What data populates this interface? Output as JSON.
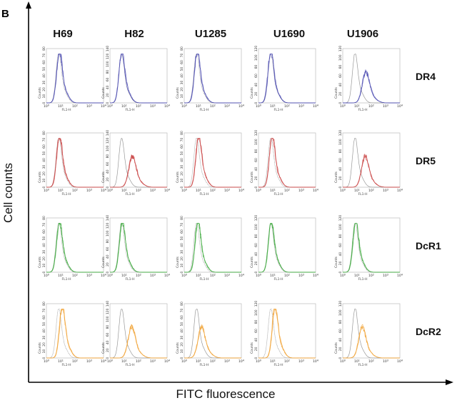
{
  "figure": {
    "panel_letter": "B",
    "y_title": "Cell counts",
    "x_title": "FITC fluorescence",
    "subplot_xlabel": "FL1-H",
    "subplot_ylabel": "Counts",
    "x_ticks": [
      "10^0",
      "10^1",
      "10^2",
      "10^3",
      "10^4"
    ]
  },
  "chart_data": {
    "type": "line",
    "description_scale": "log-x histogram grid",
    "columns": [
      "H69",
      "H82",
      "U1285",
      "U1690",
      "U1906"
    ],
    "rows": [
      {
        "label": "DR4",
        "color": "#4a4ab0",
        "ymax": [
          80,
          140,
          80,
          120,
          120
        ],
        "y_ticks": [
          [
            0,
            10,
            20,
            30,
            40,
            50,
            60,
            70,
            80
          ],
          [
            0,
            20,
            40,
            60,
            80,
            100,
            120,
            140
          ],
          [
            0,
            10,
            20,
            30,
            40,
            50,
            60,
            70,
            80
          ],
          [
            0,
            20,
            40,
            60,
            80,
            100,
            120
          ],
          [
            0,
            20,
            40,
            60,
            80,
            100,
            120
          ]
        ],
        "control_peak_log": [
          0.85,
          0.8,
          0.85,
          0.85,
          0.85
        ],
        "stain_peak_log": [
          0.9,
          0.82,
          0.9,
          0.85,
          1.6
        ]
      },
      {
        "label": "DR5",
        "color": "#c84040",
        "ymax": [
          80,
          140,
          80,
          120,
          120
        ],
        "y_ticks": [
          [
            0,
            10,
            20,
            30,
            40,
            50,
            60,
            70,
            80
          ],
          [
            0,
            20,
            40,
            60,
            80,
            100,
            120,
            140
          ],
          [
            0,
            10,
            20,
            30,
            40,
            50,
            60,
            70,
            80
          ],
          [
            0,
            20,
            40,
            60,
            80,
            100,
            120
          ],
          [
            0,
            20,
            40,
            60,
            80,
            100,
            120
          ]
        ],
        "control_peak_log": [
          0.85,
          0.8,
          0.85,
          0.85,
          0.85
        ],
        "stain_peak_log": [
          0.9,
          1.55,
          1.0,
          0.95,
          1.55
        ]
      },
      {
        "label": "DcR1",
        "color": "#3aa83a",
        "ymax": [
          80,
          140,
          80,
          120,
          120
        ],
        "y_ticks": [
          [
            0,
            10,
            20,
            30,
            40,
            50,
            60,
            70,
            80
          ],
          [
            0,
            20,
            40,
            60,
            80,
            100,
            120,
            140
          ],
          [
            0,
            10,
            20,
            30,
            40,
            50,
            60,
            70,
            80
          ],
          [
            0,
            20,
            40,
            60,
            80,
            100,
            120
          ],
          [
            0,
            20,
            40,
            60,
            80,
            100,
            120
          ]
        ],
        "control_peak_log": [
          0.85,
          0.8,
          0.85,
          0.85,
          0.85
        ],
        "stain_peak_log": [
          0.9,
          0.85,
          0.95,
          0.88,
          0.9
        ]
      },
      {
        "label": "DcR2",
        "color": "#f0a030",
        "ymax": [
          80,
          140,
          80,
          120,
          120
        ],
        "y_ticks": [
          [
            0,
            10,
            20,
            30,
            40,
            50,
            60,
            70,
            80
          ],
          [
            0,
            20,
            40,
            60,
            80,
            100,
            120,
            140
          ],
          [
            0,
            10,
            20,
            30,
            40,
            50,
            60,
            70,
            80
          ],
          [
            0,
            20,
            40,
            60,
            80,
            100,
            120
          ],
          [
            0,
            20,
            40,
            60,
            80,
            100,
            120
          ]
        ],
        "control_peak_log": [
          0.85,
          0.8,
          0.85,
          0.85,
          0.85
        ],
        "stain_peak_log": [
          1.1,
          1.5,
          1.2,
          1.15,
          1.35
        ]
      }
    ],
    "x_range_log": [
      0,
      4
    ],
    "control_color": "#999999"
  }
}
